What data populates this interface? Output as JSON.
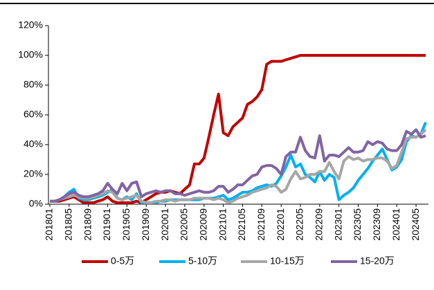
{
  "chart_data": {
    "type": "line",
    "categories": [
      "201801",
      null,
      null,
      null,
      "201805",
      null,
      null,
      null,
      "201809",
      null,
      null,
      null,
      "201901",
      null,
      null,
      null,
      "201905",
      null,
      null,
      null,
      "201909",
      null,
      null,
      null,
      "202001",
      null,
      null,
      null,
      "202005",
      null,
      null,
      null,
      "202009",
      null,
      null,
      null,
      "202101",
      null,
      null,
      null,
      "202105",
      null,
      null,
      null,
      "202109",
      null,
      null,
      null,
      "202201",
      null,
      null,
      null,
      "202205",
      null,
      null,
      null,
      "202209",
      null,
      null,
      null,
      "202301",
      null,
      null,
      null,
      "202305",
      null,
      null,
      null,
      "202309",
      null,
      null,
      null,
      "202401",
      null,
      null,
      null,
      "202405",
      null,
      null
    ],
    "series": [
      {
        "name": "0-5万",
        "color": "#c00000",
        "values": [
          2,
          2,
          2,
          3,
          4,
          5,
          3,
          1,
          1,
          1,
          2,
          3,
          5,
          2,
          1,
          1,
          1,
          1,
          2,
          1,
          3,
          5,
          7,
          8,
          8,
          9,
          8,
          7,
          10,
          13,
          27,
          27,
          31,
          45,
          60,
          74,
          48,
          46,
          52,
          55,
          58,
          67,
          69,
          72,
          77,
          94,
          96,
          96,
          96,
          97,
          98,
          99,
          100,
          100,
          100,
          100,
          100,
          100,
          100,
          100,
          100,
          100,
          100,
          100,
          100,
          100,
          100,
          100,
          100,
          100,
          100,
          100,
          100,
          100,
          100,
          100,
          100,
          100,
          100
        ]
      },
      {
        "name": "5-10万",
        "color": "#00b0f0",
        "values": [
          2,
          2,
          3,
          5,
          8,
          10,
          4,
          3,
          3,
          4,
          5,
          6,
          8,
          10,
          4,
          3,
          5,
          3,
          7,
          1,
          1,
          1,
          1,
          2,
          2,
          3,
          3,
          3,
          3,
          3,
          3,
          3,
          4,
          4,
          4,
          5,
          6,
          3,
          4,
          6,
          8,
          8,
          9,
          11,
          12,
          13,
          12,
          14,
          19,
          25,
          33,
          25,
          27,
          20,
          18,
          15,
          22,
          16,
          20,
          18,
          3,
          6,
          8,
          11,
          16,
          20,
          24,
          29,
          33,
          37,
          30,
          23,
          25,
          30,
          42,
          46,
          45,
          47,
          55
        ]
      },
      {
        "name": "10-15万",
        "color": "#a6a6a6",
        "values": [
          2,
          2,
          3,
          4,
          5,
          6,
          5,
          4,
          4,
          5,
          6,
          7,
          9,
          8,
          4,
          3,
          4,
          5,
          6,
          2,
          1,
          1,
          2,
          2,
          3,
          3,
          2,
          3,
          3,
          3,
          4,
          4,
          4,
          4,
          3,
          4,
          3,
          1,
          2,
          4,
          5,
          6,
          8,
          9,
          10,
          11,
          13,
          12,
          8,
          10,
          17,
          22,
          17,
          18,
          20,
          20,
          22,
          22,
          28,
          22,
          17,
          29,
          32,
          30,
          31,
          29,
          30,
          30,
          31,
          31,
          29,
          24,
          26,
          35,
          44,
          45,
          45,
          47,
          50
        ]
      },
      {
        "name": "15-20万",
        "color": "#8064a2",
        "values": [
          2,
          2,
          3,
          5,
          7,
          8,
          6,
          5,
          5,
          6,
          7,
          9,
          14,
          10,
          7,
          14,
          9,
          14,
          15,
          5,
          7,
          8,
          9,
          8,
          9,
          9,
          7,
          7,
          6,
          7,
          8,
          9,
          8,
          8,
          9,
          12,
          12,
          8,
          10,
          13,
          13,
          16,
          19,
          20,
          25,
          26,
          26,
          24,
          20,
          32,
          35,
          35,
          45,
          36,
          32,
          31,
          46,
          29,
          33,
          33,
          32,
          35,
          38,
          35,
          35,
          36,
          42,
          40,
          42,
          41,
          37,
          36,
          36,
          40,
          49,
          47,
          50,
          45,
          46
        ]
      }
    ],
    "ylim": [
      0,
      120
    ],
    "yticks": [
      {
        "value": 0,
        "label": "0%"
      },
      {
        "value": 20,
        "label": "20%"
      },
      {
        "value": 40,
        "label": "40%"
      },
      {
        "value": 60,
        "label": "60%"
      },
      {
        "value": 80,
        "label": "80%"
      },
      {
        "value": 100,
        "label": "100%"
      },
      {
        "value": 120,
        "label": "120%"
      }
    ],
    "legend": "bottom"
  }
}
